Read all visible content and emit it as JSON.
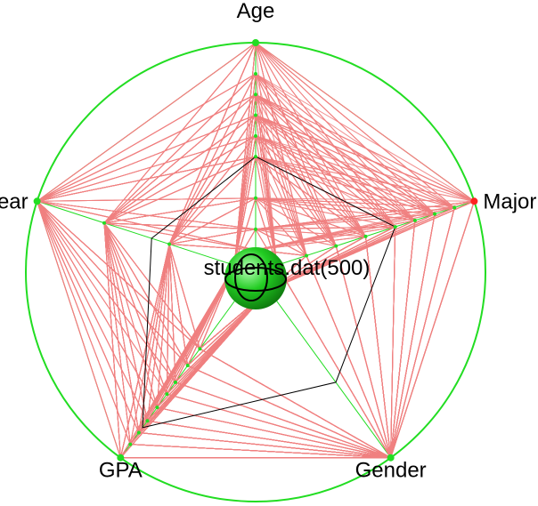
{
  "chart_data": {
    "type": "radar",
    "dataset_label": "students.dat(500)",
    "axes": [
      {
        "name": "Age",
        "highlighted": false
      },
      {
        "name": "Major",
        "highlighted": true
      },
      {
        "name": "Gender",
        "highlighted": false
      },
      {
        "name": "GPA",
        "highlighted": false
      },
      {
        "name": "Year",
        "highlighted": false
      }
    ],
    "records_count": 500,
    "mean_profile": [
      0.45,
      0.6,
      0.55,
      0.82,
      0.42
    ],
    "profile_levels": {
      "Age": [
        0.0,
        0.1,
        0.25,
        0.45,
        0.55,
        0.65,
        0.75,
        0.85,
        1.0
      ],
      "Major": [
        0.0,
        0.15,
        0.3,
        0.45,
        0.6,
        0.7,
        0.8,
        0.9,
        1.0
      ],
      "Gender": [
        0.0,
        1.0
      ],
      "GPA": [
        0.35,
        0.45,
        0.55,
        0.62,
        0.7,
        0.78,
        0.85,
        0.92,
        1.0
      ],
      "Year": [
        0.0,
        0.33,
        0.66,
        1.0
      ]
    },
    "colors": {
      "circle": "#22dd22",
      "axis": "#22dd22",
      "axis_point": "#22dd22",
      "highlight_point": "#ff2222",
      "records": "#f08080",
      "mean_line": "#000000",
      "center_sphere": "#22cc22"
    }
  }
}
